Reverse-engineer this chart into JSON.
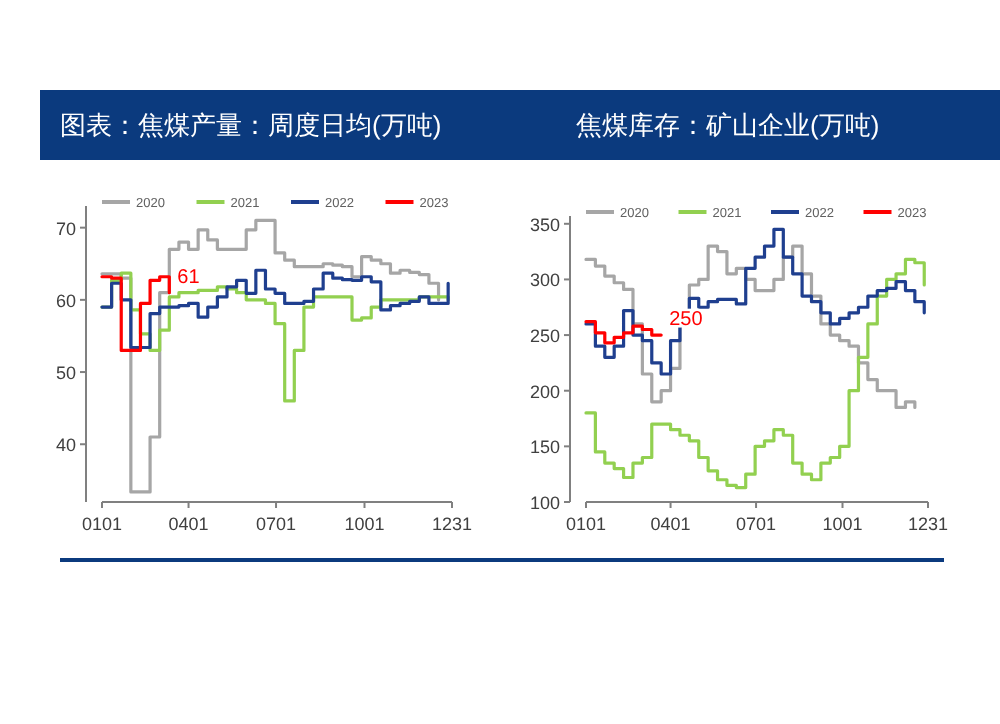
{
  "chart_data": [
    {
      "type": "step",
      "title": "图表：焦煤产量：周度日均(万吨)",
      "legend": "top",
      "x": [
        "--01-01",
        "--01-11",
        "--01-21",
        "--01-31",
        "--02-10",
        "--02-20",
        "--03-02",
        "--03-12",
        "--03-22",
        "--04-01",
        "--04-11",
        "--04-21",
        "--05-01",
        "--05-11",
        "--05-21",
        "--05-31",
        "--06-10",
        "--06-20",
        "--06-30",
        "--07-10",
        "--07-20",
        "--07-30",
        "--08-09",
        "--08-19",
        "--08-29",
        "--09-08",
        "--09-18",
        "--09-28",
        "--10-08",
        "--10-18",
        "--10-28",
        "--11-07",
        "--11-17",
        "--11-27",
        "--12-07",
        "--12-17",
        "--12-27"
      ],
      "ylim": [
        32,
        73
      ],
      "yticks": [
        40,
        50,
        60,
        70
      ],
      "xlim": [
        "--01-01",
        "--12-31"
      ],
      "xticks": [
        {
          "value": "--01-01",
          "label": "0101"
        },
        {
          "value": "--04-01",
          "label": "0401"
        },
        {
          "value": "--07-01",
          "label": "0701"
        },
        {
          "value": "--10-01",
          "label": "1001"
        },
        {
          "value": "--12-31",
          "label": "1231"
        }
      ],
      "series": [
        {
          "name": "2020",
          "color": "#a6a6a6",
          "values": [
            63.6,
            63.6,
            63,
            33.4,
            33.4,
            41,
            61,
            67,
            68,
            67,
            69.7,
            68.3,
            67,
            67,
            67,
            69.7,
            71,
            71,
            66.5,
            65.5,
            64.6,
            64.6,
            64.6,
            65,
            64.8,
            64.6,
            63.2,
            66,
            65.5,
            65,
            63.7,
            64.1,
            63.8,
            63.5,
            62.3,
            60,
            null
          ]
        },
        {
          "name": "2021",
          "color": "#92d050",
          "values": [
            59,
            62.7,
            63.7,
            58.6,
            55.3,
            53,
            55.8,
            60.4,
            61,
            61,
            61.3,
            61.3,
            61.8,
            61.5,
            61,
            60,
            60,
            59.5,
            56.7,
            46,
            53,
            59,
            60.4,
            60.4,
            60.4,
            60.4,
            57.2,
            57.5,
            59,
            60,
            60,
            60,
            60,
            60.4,
            60.4,
            60.4,
            60
          ]
        },
        {
          "name": "2022",
          "color": "#1f3f8f",
          "values": [
            59,
            62.3,
            60,
            53.4,
            53.4,
            58.1,
            59,
            59,
            59.2,
            59.5,
            57.6,
            59,
            60.4,
            61.8,
            62.7,
            60.9,
            64.1,
            61.5,
            60.9,
            59.5,
            59.5,
            59.8,
            61.5,
            63.7,
            63,
            62.8,
            62.7,
            63.2,
            62.5,
            58.6,
            59.2,
            59.5,
            59.8,
            60.4,
            59.5,
            59.5,
            62.3
          ]
        },
        {
          "name": "2023",
          "color": "#ff0000",
          "values": [
            63.2,
            63,
            53,
            53,
            59.5,
            62.7,
            63.2,
            61,
            null,
            null,
            null,
            null,
            null,
            null,
            null,
            null,
            null,
            null,
            null,
            null,
            null,
            null,
            null,
            null,
            null,
            null,
            null,
            null,
            null,
            null,
            null,
            null,
            null,
            null,
            null,
            null,
            null
          ]
        }
      ],
      "annotations": [
        {
          "text": "61",
          "x": "--03-12",
          "y": 61
        }
      ]
    },
    {
      "type": "step",
      "title": "焦煤库存：矿山企业(万吨)",
      "legend": "top",
      "x": [
        "--01-01",
        "--01-11",
        "--01-21",
        "--01-31",
        "--02-10",
        "--02-20",
        "--03-02",
        "--03-12",
        "--03-22",
        "--04-01",
        "--04-11",
        "--04-21",
        "--05-01",
        "--05-11",
        "--05-21",
        "--05-31",
        "--06-10",
        "--06-20",
        "--06-30",
        "--07-10",
        "--07-20",
        "--07-30",
        "--08-09",
        "--08-19",
        "--08-29",
        "--09-08",
        "--09-18",
        "--09-28",
        "--10-08",
        "--10-18",
        "--10-28",
        "--11-07",
        "--11-17",
        "--11-27",
        "--12-07",
        "--12-17",
        "--12-27"
      ],
      "ylim": [
        100,
        357
      ],
      "yticks": [
        100,
        150,
        200,
        250,
        300,
        350
      ],
      "xlim": [
        "--01-01",
        "--12-31"
      ],
      "xticks": [
        {
          "value": "--01-01",
          "label": "0101"
        },
        {
          "value": "--04-01",
          "label": "0401"
        },
        {
          "value": "--07-01",
          "label": "0701"
        },
        {
          "value": "--10-01",
          "label": "1001"
        },
        {
          "value": "--12-31",
          "label": "1231"
        }
      ],
      "series": [
        {
          "name": "2020",
          "color": "#a6a6a6",
          "values": [
            318,
            312,
            303,
            297,
            291,
            260,
            215,
            190,
            200,
            220,
            260,
            295,
            300,
            330,
            325,
            305,
            310,
            300,
            290,
            290,
            300,
            320,
            330,
            305,
            285,
            260,
            250,
            245,
            240,
            225,
            210,
            200,
            200,
            185,
            190,
            185,
            null
          ]
        },
        {
          "name": "2021",
          "color": "#92d050",
          "values": [
            180,
            145,
            135,
            130,
            122,
            135,
            140,
            170,
            170,
            165,
            160,
            155,
            140,
            128,
            120,
            115,
            113,
            125,
            150,
            155,
            165,
            160,
            135,
            125,
            120,
            135,
            140,
            150,
            200,
            230,
            260,
            285,
            300,
            305,
            318,
            315,
            295
          ]
        },
        {
          "name": "2022",
          "color": "#1f3f8f",
          "values": [
            260,
            240,
            230,
            240,
            272,
            250,
            245,
            225,
            215,
            245,
            260,
            283,
            275,
            280,
            282,
            282,
            278,
            310,
            320,
            330,
            345,
            320,
            305,
            285,
            280,
            270,
            260,
            265,
            270,
            275,
            285,
            290,
            292,
            298,
            290,
            280,
            270
          ]
        },
        {
          "name": "2023",
          "color": "#ff0000",
          "values": [
            262,
            252,
            243,
            248,
            252,
            258,
            255,
            250,
            250,
            null,
            null,
            null,
            null,
            null,
            null,
            null,
            null,
            null,
            null,
            null,
            null,
            null,
            null,
            null,
            null,
            null,
            null,
            null,
            null,
            null,
            null,
            null,
            null,
            null,
            null,
            null,
            null
          ]
        }
      ],
      "annotations": [
        {
          "text": "250",
          "x": "--03-22",
          "y": 250
        }
      ]
    }
  ]
}
